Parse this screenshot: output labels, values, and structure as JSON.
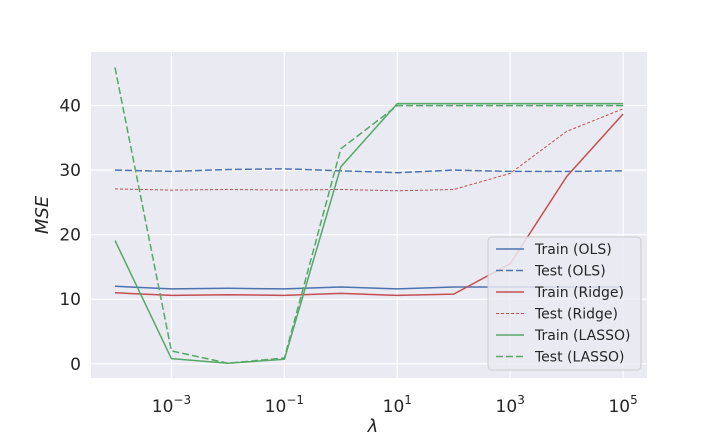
{
  "chart_data": {
    "type": "line",
    "title": "",
    "xlabel": "λ",
    "ylabel": "MSE",
    "xscale": "log",
    "x_tick_labels": [
      {
        "base": "10",
        "exp": "−3",
        "value": 0.001
      },
      {
        "base": "10",
        "exp": "−1",
        "value": 0.1
      },
      {
        "base": "10",
        "exp": "1",
        "value": 10
      },
      {
        "base": "10",
        "exp": "3",
        "value": 1000
      },
      {
        "base": "10",
        "exp": "5",
        "value": 100000
      }
    ],
    "y_ticks": [
      0,
      10,
      20,
      30,
      40
    ],
    "y_tick_labels": [
      "0",
      "10",
      "20",
      "30",
      "40"
    ],
    "xlim": [
      3.76e-05,
      265000
    ],
    "ylim": [
      -2.2,
      48.3
    ],
    "grid": true,
    "legend_position": "lower-right",
    "x": [
      0.0001,
      0.001,
      0.01,
      0.1,
      1,
      10,
      100,
      1000,
      10000,
      100000
    ],
    "series": [
      {
        "name": "Train (OLS)",
        "color": "#4c72b0",
        "dash": "solid",
        "values": [
          12.0,
          11.6,
          11.7,
          11.6,
          11.9,
          11.6,
          11.9,
          11.9,
          11.9,
          11.9
        ]
      },
      {
        "name": "Test (OLS)",
        "color": "#4c72b0",
        "dash": "dashed",
        "values": [
          30.0,
          29.8,
          30.1,
          30.2,
          29.9,
          29.6,
          30.0,
          29.8,
          29.8,
          29.9
        ]
      },
      {
        "name": "Train (Ridge)",
        "color": "#c44e52",
        "dash": "solid",
        "values": [
          11.0,
          10.6,
          10.7,
          10.6,
          10.9,
          10.6,
          10.8,
          15.5,
          29.0,
          38.7
        ]
      },
      {
        "name": "Test (Ridge)",
        "color": "#c44e52",
        "dash": "dotted",
        "values": [
          27.1,
          26.9,
          27.0,
          26.9,
          27.0,
          26.8,
          27.0,
          29.5,
          36.0,
          39.5
        ]
      },
      {
        "name": "Train (LASSO)",
        "color": "#55a868",
        "dash": "solid",
        "values": [
          19.1,
          0.8,
          0.1,
          0.7,
          30.5,
          40.3,
          40.3,
          40.3,
          40.3,
          40.3
        ]
      },
      {
        "name": "Test (LASSO)",
        "color": "#55a868",
        "dash": "dashed",
        "values": [
          45.9,
          2.0,
          0.1,
          0.9,
          33.3,
          40.0,
          40.0,
          40.0,
          40.0,
          40.0
        ]
      }
    ]
  }
}
